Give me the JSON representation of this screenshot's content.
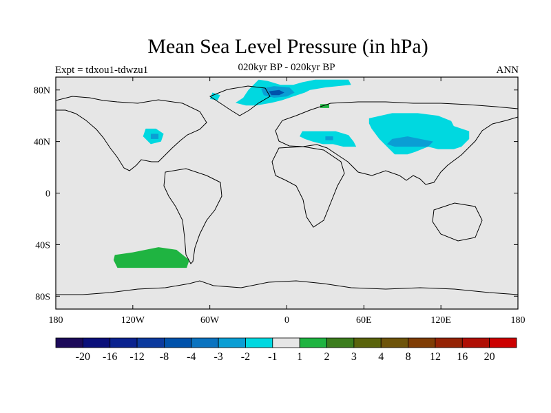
{
  "title": "Mean Sea Level Pressure (in hPa)",
  "subtitle": "020kyr BP - 020kyr BP",
  "left_label": "Expt = tdxou1-tdwzu1",
  "right_label": "ANN",
  "map": {
    "projection": "cylindrical-equidistant",
    "lon_range": [
      -180,
      180
    ],
    "lat_range": [
      -90,
      90
    ],
    "background_color": "#e6e6e6",
    "lon_ticks": [
      {
        "value": -180,
        "label": "180"
      },
      {
        "value": -120,
        "label": "120W"
      },
      {
        "value": -60,
        "label": "60W"
      },
      {
        "value": 0,
        "label": "0"
      },
      {
        "value": 60,
        "label": "60E"
      },
      {
        "value": 120,
        "label": "120E"
      },
      {
        "value": 180,
        "label": "180"
      }
    ],
    "lat_ticks": [
      {
        "value": 80,
        "label": "80N"
      },
      {
        "value": 40,
        "label": "40N"
      },
      {
        "value": 0,
        "label": "0"
      },
      {
        "value": -40,
        "label": "40S"
      },
      {
        "value": -80,
        "label": "80S"
      }
    ]
  },
  "colorbar": {
    "colors": [
      "#1c0a5a",
      "#0a0f7a",
      "#0a228f",
      "#0b3a9e",
      "#0052ab",
      "#0a73c0",
      "#0a9ed4",
      "#00d8e0",
      "#e6e6e6",
      "#1fb441",
      "#3c7d1e",
      "#5a640c",
      "#6e540a",
      "#7f3d05",
      "#952305",
      "#b00f05",
      "#cc0000"
    ],
    "labels": [
      "-20",
      "-16",
      "-12",
      "-8",
      "-4",
      "-3",
      "-2",
      "-1",
      "1",
      "2",
      "3",
      "4",
      "8",
      "12",
      "16",
      "20"
    ]
  },
  "anomaly_regions": [
    {
      "color": "#00d8e0",
      "points": [
        [
          -22,
          88
        ],
        [
          -15,
          87
        ],
        [
          -5,
          84
        ],
        [
          5,
          84
        ],
        [
          12,
          86
        ],
        [
          22,
          88
        ],
        [
          30,
          88
        ],
        [
          48,
          88
        ],
        [
          50,
          84
        ],
        [
          30,
          82
        ],
        [
          18,
          80
        ],
        [
          14,
          78
        ],
        [
          8,
          76
        ],
        [
          -4,
          72
        ],
        [
          -12,
          70
        ],
        [
          -24,
          68
        ],
        [
          -32,
          68
        ],
        [
          -40,
          70
        ],
        [
          -34,
          74
        ],
        [
          -30,
          80
        ]
      ]
    },
    {
      "color": "#00d8e0",
      "points": [
        [
          -58,
          78
        ],
        [
          -52,
          76
        ],
        [
          -54,
          72
        ],
        [
          -60,
          73
        ]
      ]
    },
    {
      "color": "#0a9ed4",
      "points": [
        [
          -20,
          81
        ],
        [
          -10,
          83
        ],
        [
          2,
          82
        ],
        [
          6,
          78
        ],
        [
          0,
          75
        ],
        [
          -10,
          74
        ],
        [
          -18,
          76
        ]
      ]
    },
    {
      "color": "#0052ab",
      "points": [
        [
          -14,
          79
        ],
        [
          -6,
          80
        ],
        [
          -2,
          78
        ],
        [
          -6,
          76
        ],
        [
          -12,
          76
        ]
      ]
    },
    {
      "color": "#1fb441",
      "points": [
        [
          26,
          69
        ],
        [
          33,
          69
        ],
        [
          33,
          66
        ],
        [
          26,
          66
        ]
      ]
    },
    {
      "color": "#00d8e0",
      "points": [
        [
          64,
          58
        ],
        [
          82,
          62
        ],
        [
          102,
          62
        ],
        [
          118,
          60
        ],
        [
          128,
          56
        ],
        [
          130,
          52
        ],
        [
          142,
          48
        ],
        [
          142,
          42
        ],
        [
          136,
          36
        ],
        [
          130,
          34
        ],
        [
          118,
          34
        ],
        [
          110,
          36
        ],
        [
          100,
          32
        ],
        [
          94,
          30
        ],
        [
          84,
          30
        ],
        [
          78,
          36
        ],
        [
          72,
          42
        ],
        [
          66,
          50
        ],
        [
          64,
          54
        ]
      ]
    },
    {
      "color": "#00d8e0",
      "points": [
        [
          12,
          48
        ],
        [
          24,
          48
        ],
        [
          38,
          48
        ],
        [
          48,
          45
        ],
        [
          52,
          40
        ],
        [
          54,
          36
        ],
        [
          44,
          36
        ],
        [
          36,
          38
        ],
        [
          28,
          38
        ],
        [
          20,
          40
        ],
        [
          14,
          42
        ],
        [
          10,
          44
        ]
      ]
    },
    {
      "color": "#0a9ed4",
      "points": [
        [
          82,
          42
        ],
        [
          94,
          44
        ],
        [
          104,
          42
        ],
        [
          114,
          40
        ],
        [
          110,
          36
        ],
        [
          96,
          36
        ],
        [
          84,
          36
        ],
        [
          78,
          38
        ]
      ]
    },
    {
      "color": "#0a9ed4",
      "points": [
        [
          30,
          44
        ],
        [
          36,
          44
        ],
        [
          36,
          41
        ],
        [
          30,
          41
        ]
      ]
    },
    {
      "color": "#00d8e0",
      "points": [
        [
          -110,
          50
        ],
        [
          -102,
          50
        ],
        [
          -96,
          46
        ],
        [
          -98,
          40
        ],
        [
          -106,
          38
        ],
        [
          -112,
          44
        ]
      ]
    },
    {
      "color": "#0a9ed4",
      "points": [
        [
          -106,
          46
        ],
        [
          -100,
          46
        ],
        [
          -100,
          42
        ],
        [
          -106,
          42
        ]
      ]
    },
    {
      "color": "#1fb441",
      "points": [
        [
          -134,
          -48
        ],
        [
          -120,
          -46
        ],
        [
          -100,
          -42
        ],
        [
          -86,
          -44
        ],
        [
          -76,
          -52
        ],
        [
          -78,
          -58
        ],
        [
          -96,
          -58
        ],
        [
          -116,
          -58
        ],
        [
          -132,
          -58
        ],
        [
          -135,
          -52
        ]
      ]
    }
  ]
}
